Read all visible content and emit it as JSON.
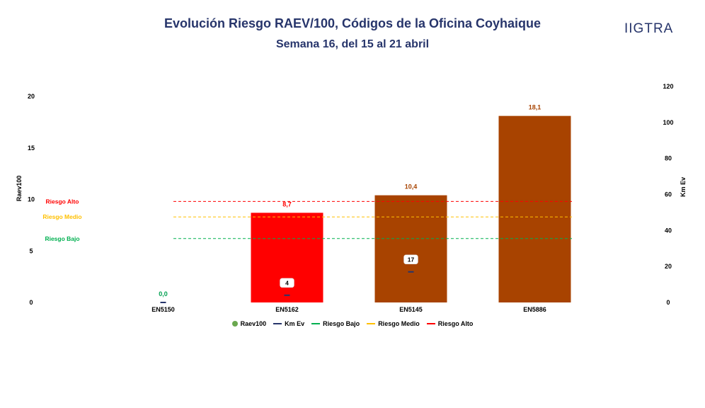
{
  "header": {
    "title": "Evolución Riesgo RAEV/100, Códigos de la Oficina Coyhaique",
    "subtitle": "Semana 16, del 15 al 21 abril",
    "logo_text": "IIGTRA"
  },
  "chart_data": {
    "type": "bar",
    "categories": [
      "EN5150",
      "EN5162",
      "EN5145",
      "EN5886"
    ],
    "series": [
      {
        "name": "Raev100",
        "axis": "left",
        "values": [
          0.0,
          8.7,
          10.4,
          18.1
        ],
        "labels": [
          "0,0",
          "8,7",
          "10,4",
          "18,1"
        ],
        "colors": [
          "#00a050",
          "#ff0000",
          "#a84300",
          "#a84300"
        ]
      },
      {
        "name": "Km Ev",
        "axis": "right",
        "values": [
          0,
          4,
          17,
          null
        ],
        "labels": [
          "",
          "4",
          "17",
          ""
        ],
        "color": "#27356b"
      }
    ],
    "thresholds": [
      {
        "name": "Riesgo Bajo",
        "value": 6.2,
        "color": "#00b050"
      },
      {
        "name": "Riesgo Medio",
        "value": 8.3,
        "color": "#ffc000"
      },
      {
        "name": "Riesgo Alto",
        "value": 9.8,
        "color": "#ff0000"
      }
    ],
    "threshold_labels": [
      "Riesgo Alto",
      "Riesgo Medio",
      "Riesgo Bajo"
    ],
    "ylabel": "Raev100",
    "y2label": "Km Ev",
    "ylim": [
      0,
      20
    ],
    "y2lim": [
      0,
      120
    ],
    "yticks": [
      0,
      5,
      10,
      15,
      20
    ],
    "y2ticks": [
      0,
      20,
      40,
      60,
      80,
      100,
      120
    ],
    "legend_position": "bottom",
    "grid": false
  },
  "legend": [
    {
      "label": "Raev100",
      "kind": "dot",
      "color": "#6aa84f"
    },
    {
      "label": "Km Ev",
      "kind": "solid",
      "color": "#27356b"
    },
    {
      "label": "Riesgo Bajo",
      "kind": "dash",
      "color": "#00b050"
    },
    {
      "label": "Riesgo Medio",
      "kind": "dash",
      "color": "#ffc000"
    },
    {
      "label": "Riesgo Alto",
      "kind": "dash",
      "color": "#ff0000"
    }
  ]
}
